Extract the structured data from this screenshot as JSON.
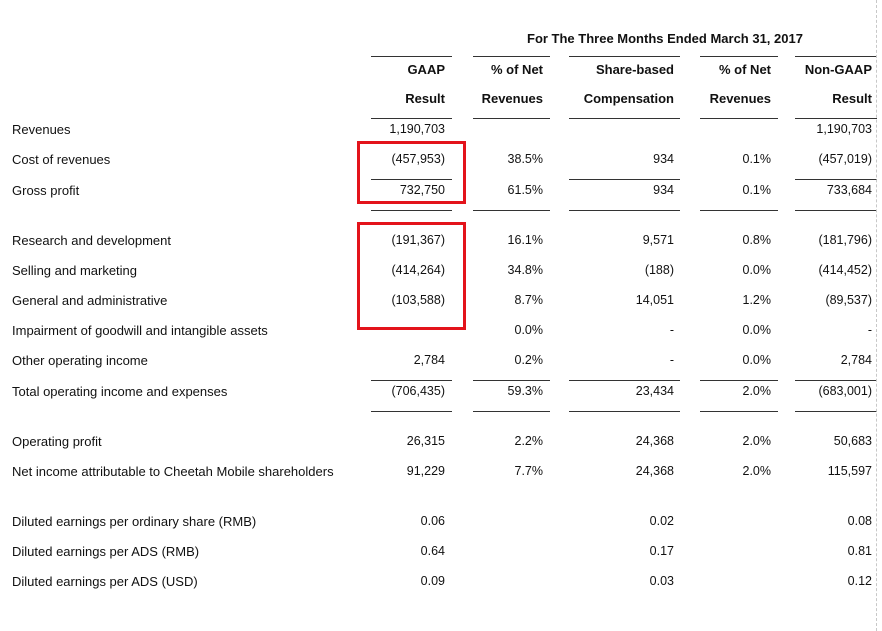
{
  "table": {
    "period_header": "For The Three Months Ended March 31, 2017",
    "columns": [
      {
        "line1": "GAAP",
        "line2": "Result"
      },
      {
        "line1": "% of Net",
        "line2": "Revenues"
      },
      {
        "line1": "Share-based",
        "line2": "Compensation"
      },
      {
        "line1": "% of Net",
        "line2": "Revenues"
      },
      {
        "line1": "Non-GAAP",
        "line2": "Result"
      }
    ],
    "rows": [
      {
        "label": "Revenues",
        "values": [
          "1,190,703",
          "",
          "",
          "",
          "1,190,703"
        ]
      },
      {
        "label": "Cost of revenues",
        "values": [
          "(457,953)",
          "38.5%",
          "934",
          "0.1%",
          "(457,019)"
        ]
      },
      {
        "label": "Gross profit",
        "values": [
          "732,750",
          "61.5%",
          "934",
          "0.1%",
          "733,684"
        ]
      },
      {
        "label": "Research and development",
        "values": [
          "(191,367)",
          "16.1%",
          "9,571",
          "0.8%",
          "(181,796)"
        ]
      },
      {
        "label": "Selling and marketing",
        "values": [
          "(414,264)",
          "34.8%",
          "(188)",
          "0.0%",
          "(414,452)"
        ]
      },
      {
        "label": "General and administrative",
        "values": [
          "(103,588)",
          "8.7%",
          "14,051",
          "1.2%",
          "(89,537)"
        ]
      },
      {
        "label": "Impairment of goodwill and intangible assets",
        "values": [
          "",
          "0.0%",
          "-",
          "0.0%",
          "-"
        ]
      },
      {
        "label": "Other operating income",
        "values": [
          "2,784",
          "0.2%",
          "-",
          "0.0%",
          "2,784"
        ]
      },
      {
        "label": "Total operating income and expenses",
        "values": [
          "(706,435)",
          "59.3%",
          "23,434",
          "2.0%",
          "(683,001)"
        ]
      },
      {
        "label": "Operating profit",
        "values": [
          "26,315",
          "2.2%",
          "24,368",
          "2.0%",
          "50,683"
        ]
      },
      {
        "label": "Net income attributable to Cheetah Mobile shareholders",
        "values": [
          "91,229",
          "7.7%",
          "24,368",
          "2.0%",
          "115,597"
        ]
      },
      {
        "label": "Diluted earnings per ordinary share (RMB)",
        "values": [
          "0.06",
          "",
          "0.02",
          "",
          "0.08"
        ]
      },
      {
        "label": "Diluted earnings per ADS (RMB)",
        "values": [
          "0.64",
          "",
          "0.17",
          "",
          "0.81"
        ]
      },
      {
        "label": "Diluted earnings per ADS (USD)",
        "values": [
          "0.09",
          "",
          "0.03",
          "",
          "0.12"
        ]
      }
    ]
  },
  "colors": {
    "highlight": "#e3131b",
    "text": "#111111",
    "rule": "#333333"
  }
}
